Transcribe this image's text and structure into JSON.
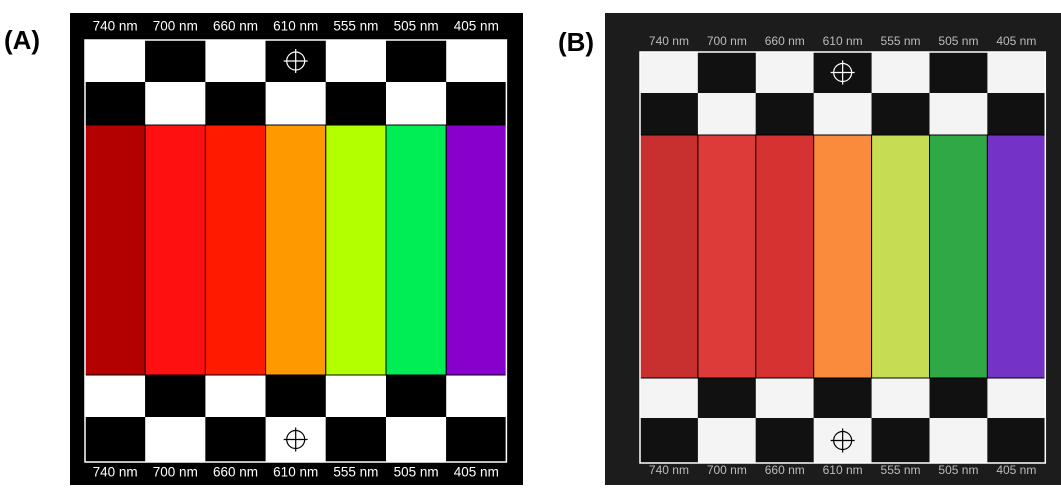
{
  "panels": [
    {
      "label": "(A)",
      "top_labels": [
        "740 nm",
        "700 nm",
        "660 nm",
        "610 nm",
        "555 nm",
        "505 nm",
        "405 nm"
      ],
      "bottom_labels": [
        "740 nm",
        "700 nm",
        "660 nm",
        "610 nm",
        "555 nm",
        "505 nm",
        "405 nm"
      ],
      "colors": [
        "#b30000",
        "#ff1010",
        "#ff1a00",
        "#ff9900",
        "#b3ff00",
        "#00ee55",
        "#8800cc"
      ]
    },
    {
      "label": "(B)",
      "top_labels": [
        "740 nm",
        "700 nm",
        "660 nm",
        "610 nm",
        "555 nm",
        "505 nm",
        "405 nm"
      ],
      "bottom_labels": [
        "740 nm",
        "700 nm",
        "660 nm",
        "610 nm",
        "555 nm",
        "505 nm",
        "405 nm"
      ],
      "colors": [
        "#c83030",
        "#dd3a3a",
        "#d63232",
        "#fa8a3c",
        "#c6dc52",
        "#2fa845",
        "#7532c6"
      ]
    }
  ]
}
